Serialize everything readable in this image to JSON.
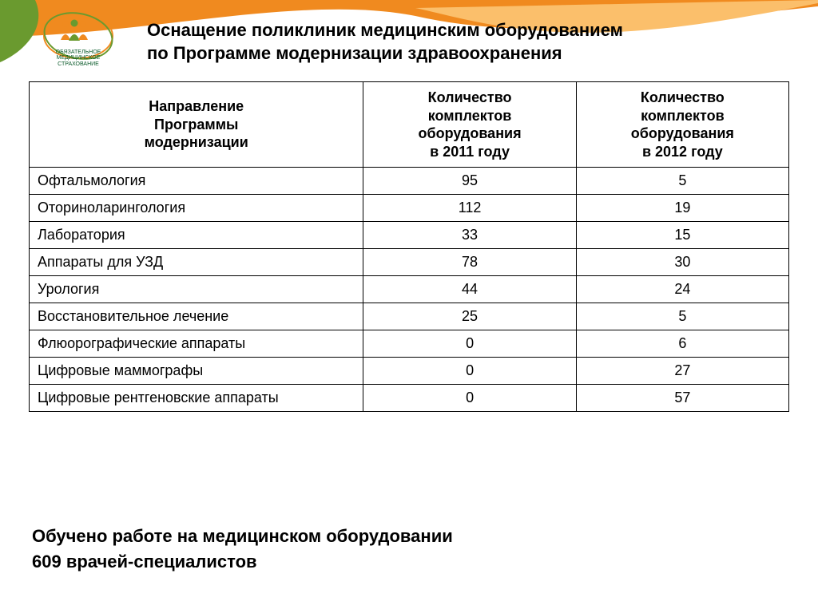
{
  "colors": {
    "orange": "#f08a1f",
    "orange_light": "#fbbf6b",
    "green": "#6a9a2f",
    "green_dark": "#0a5a2a",
    "text": "#000000",
    "border": "#000000",
    "bg": "#ffffff"
  },
  "logo": {
    "line1": "ОБЯЗАТЕЛЬНОЕ",
    "line2": "МЕДИЦИНСКОЕ",
    "line3": "СТРАХОВАНИЕ"
  },
  "title": {
    "line1": "Оснащение поликлиник медицинским оборудованием",
    "line2": "по Программе модернизации здравоохранения"
  },
  "table": {
    "columns": [
      "Направление\nПрограммы\nмодернизации",
      "Количество\nкомплектов\nоборудования\nв 2011 году",
      "Количество\nкомплектов\nоборудования\nв 2012 году"
    ],
    "col_widths_pct": [
      44,
      28,
      28
    ],
    "font_size": 18,
    "header_font_size": 18,
    "rows": [
      {
        "label": "Офтальмология",
        "y2011": "95",
        "y2012": "5"
      },
      {
        "label": "Оториноларингология",
        "y2011": "112",
        "y2012": "19"
      },
      {
        "label": "Лаборатория",
        "y2011": "33",
        "y2012": "15"
      },
      {
        "label": "Аппараты для УЗД",
        "y2011": "78",
        "y2012": "30"
      },
      {
        "label": "Урология",
        "y2011": "44",
        "y2012": "24"
      },
      {
        "label": "Восстановительное лечение",
        "y2011": "25",
        "y2012": "5"
      },
      {
        "label": "Флюорографические аппараты",
        "y2011": "0",
        "y2012": "6"
      },
      {
        "label": "Цифровые маммографы",
        "y2011": "0",
        "y2012": "27"
      },
      {
        "label": "Цифровые рентгеновские аппараты",
        "y2011": "0",
        "y2012": "57"
      }
    ]
  },
  "footer": {
    "line1": "Обучено работе на медицинском оборудовании",
    "line2": "609 врачей-специалистов"
  }
}
